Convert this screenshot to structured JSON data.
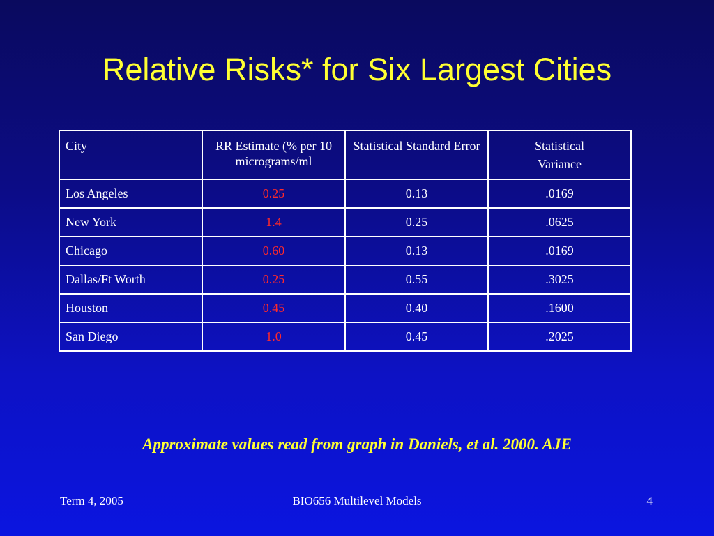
{
  "slide": {
    "title": "Relative Risks* for Six Largest Cities",
    "footnote": "Approximate values read from graph in  Daniels, et al. 2000. AJE"
  },
  "table": {
    "headers": {
      "city": "City",
      "rr": "RR Estimate (% per 10 micrograms/ml",
      "se": "Statistical Standard Error",
      "variance_line1": "Statistical",
      "variance_line2": "Variance"
    },
    "rows": [
      {
        "city": "Los Angeles",
        "rr": "0.25",
        "se": "0.13",
        "variance": ".0169"
      },
      {
        "city": "New York",
        "rr": "1.4",
        "se": "0.25",
        "variance": ".0625"
      },
      {
        "city": "Chicago",
        "rr": "0.60",
        "se": "0.13",
        "variance": ".0169"
      },
      {
        "city": "Dallas/Ft Worth",
        "rr": "0.25",
        "se": "0.55",
        "variance": ".3025"
      },
      {
        "city": "Houston",
        "rr": "0.45",
        "se": "0.40",
        "variance": ".1600"
      },
      {
        "city": "San Diego",
        "rr": "1.0",
        "se": "0.45",
        "variance": ".2025"
      }
    ]
  },
  "footer": {
    "left": "Term 4, 2005",
    "center": "BIO656 Multilevel Models",
    "right": "4"
  },
  "colors": {
    "title": "#ffff33",
    "rr_value": "#ff2a2a",
    "text": "#ffffff",
    "background_top": "#0a0a5e",
    "background_bottom": "#0b15e0"
  }
}
